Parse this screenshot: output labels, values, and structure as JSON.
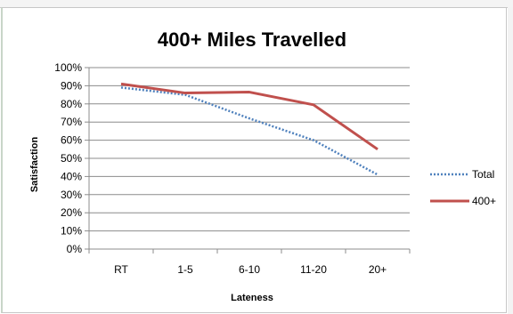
{
  "chart_data": {
    "type": "line",
    "title": "400+ Miles Travelled",
    "xlabel": "Lateness",
    "ylabel": "Satisfaction",
    "categories": [
      "RT",
      "1-5",
      "6-10",
      "11-20",
      "20+"
    ],
    "y_ticks": [
      "0%",
      "10%",
      "20%",
      "30%",
      "40%",
      "50%",
      "60%",
      "70%",
      "80%",
      "90%",
      "100%"
    ],
    "ylim": [
      0,
      1
    ],
    "grid": true,
    "legend_position": "right",
    "series": [
      {
        "name": "Total",
        "style": "dotted",
        "color": "#4f81bd",
        "values": [
          0.89,
          0.85,
          0.72,
          0.6,
          0.41
        ]
      },
      {
        "name": "400+",
        "style": "solid",
        "color": "#c0504d",
        "values": [
          0.91,
          0.86,
          0.865,
          0.795,
          0.55
        ]
      }
    ]
  }
}
